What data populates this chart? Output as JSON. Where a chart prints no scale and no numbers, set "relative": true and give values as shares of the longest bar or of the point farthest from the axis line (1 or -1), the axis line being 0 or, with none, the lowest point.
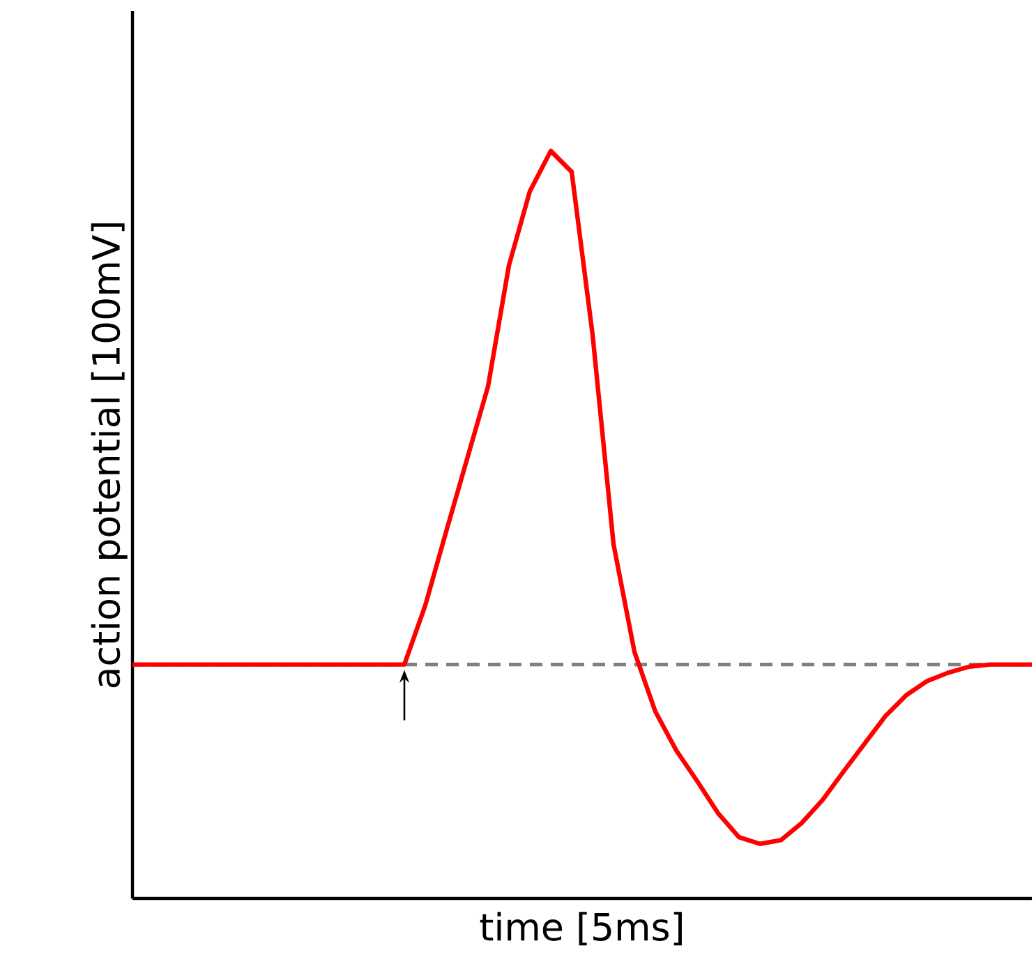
{
  "chart_data": {
    "type": "line",
    "relative": true,
    "xlabel": "time [5ms]",
    "ylabel": "action potential [100mV]",
    "categories": [
      null,
      null,
      null,
      null,
      null,
      null,
      null,
      null,
      null,
      null,
      null,
      null,
      null,
      null,
      null,
      null,
      null,
      null,
      null,
      null,
      null,
      null,
      null,
      null,
      null,
      null,
      null,
      null,
      null,
      null,
      null,
      null,
      null,
      null,
      null,
      null,
      null,
      null,
      null,
      null,
      null,
      null,
      null,
      null
    ],
    "series": [
      {
        "color": "#ff0000",
        "line_style": "solid",
        "values": [
          0.313,
          0.313,
          0.313,
          0.313,
          0.313,
          0.313,
          0.313,
          0.313,
          0.313,
          0.313,
          0.313,
          0.313,
          0.313,
          0.313,
          0.392,
          0.491,
          0.588,
          0.685,
          0.847,
          0.946,
          1,
          0.972,
          0.754,
          0.474,
          0.33,
          0.25,
          0.198,
          0.157,
          0.114,
          0.082,
          0.073,
          0.078,
          0.101,
          0.132,
          0.17,
          0.207,
          0.244,
          0.272,
          0.291,
          0.302,
          0.31,
          0.313,
          0.313,
          0.313
        ]
      }
    ],
    "ref_lines": [
      {
        "axis": "y",
        "value": 0.313,
        "color": "#808080",
        "line_style": "dashed"
      }
    ]
  }
}
